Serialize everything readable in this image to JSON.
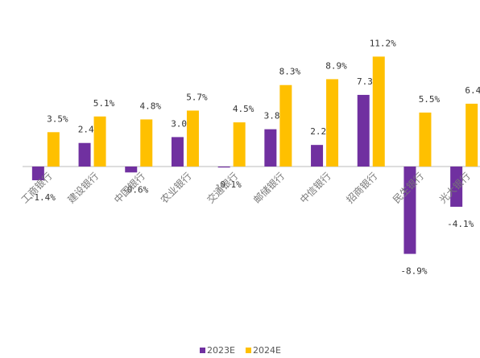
{
  "chart_data": {
    "type": "bar",
    "categories": [
      "工商银行",
      "建设银行",
      "中国银行",
      "农业银行",
      "交通银行",
      "邮储银行",
      "中信银行",
      "招商银行",
      "民生银行",
      "光大银行"
    ],
    "series": [
      {
        "name": "2023E",
        "color": "#7030a0",
        "values": [
          -1.4,
          2.4,
          -0.6,
          3.0,
          -0.1,
          3.8,
          2.2,
          7.3,
          -8.9,
          -4.1
        ],
        "value_labels": [
          "-1.4%",
          "2.4%",
          "-0.6%",
          "3.0%",
          "-0.1%",
          "3.8%",
          "2.2%",
          "7.3%",
          "-8.9%",
          "-4.1%"
        ]
      },
      {
        "name": "2024E",
        "color": "#ffc000",
        "values": [
          3.5,
          5.1,
          4.8,
          5.7,
          4.5,
          8.3,
          8.9,
          11.2,
          5.5,
          6.4
        ],
        "value_labels": [
          "3.5%",
          "5.1%",
          "4.8%",
          "5.7%",
          "4.5%",
          "8.3%",
          "8.9%",
          "11.2%",
          "5.5%",
          "6.4%"
        ]
      }
    ],
    "legend": "bottom"
  }
}
